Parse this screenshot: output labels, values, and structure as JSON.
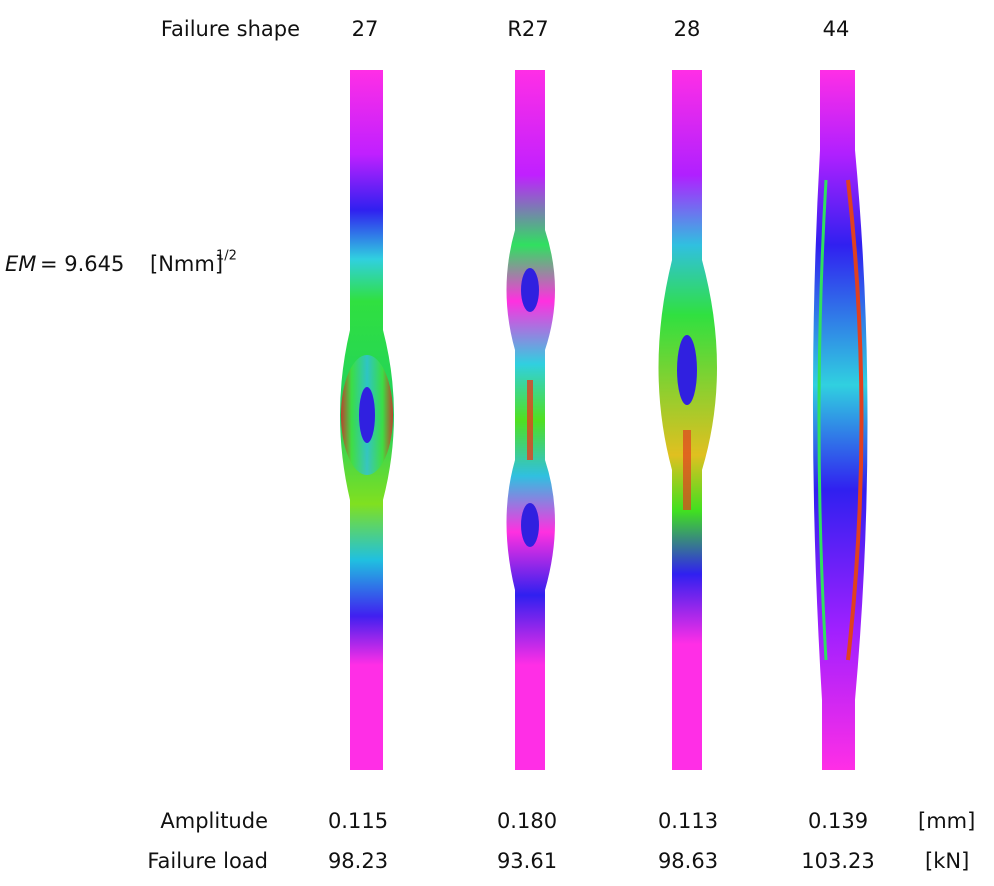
{
  "header": {
    "label": "Failure shape",
    "columns": [
      "27",
      "R27",
      "28",
      "44"
    ]
  },
  "em": {
    "symbol": "EM",
    "text": "= 9.645",
    "unit": "[Nmm]",
    "exponent": "1/2"
  },
  "rows": [
    {
      "label": "Amplitude",
      "values": [
        "0.115",
        "0.180",
        "0.113",
        "0.139"
      ],
      "unit": "[mm]"
    },
    {
      "label": "Failure load",
      "values": [
        "98.23",
        "93.61",
        "98.63",
        "103.23"
      ],
      "unit": "[kN]"
    }
  ]
}
